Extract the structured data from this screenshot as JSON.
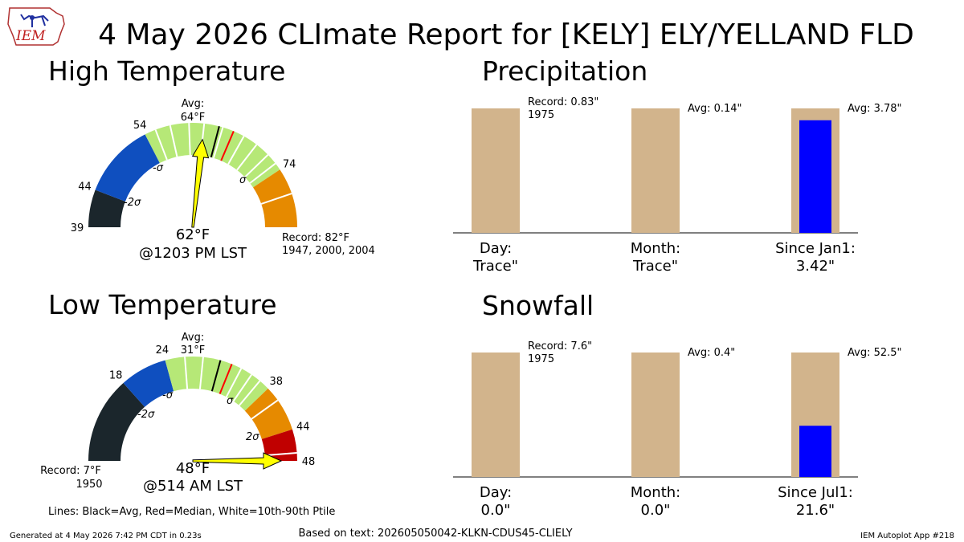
{
  "header": {
    "title": "4 May 2026 CLImate Report for [KELY] ELY/YELLAND FLD",
    "logo_text": "IEM"
  },
  "high_temp": {
    "heading": "High Temperature",
    "avg_label": "Avg:",
    "avg_value": "64°F",
    "observed_value": "62°F",
    "observed_time": "@1203 PM LST",
    "record_line1": "Record: 82°F",
    "record_line2": "1947, 2000, 2004",
    "sigma_labels": [
      "-2σ",
      "-σ",
      "σ"
    ]
  },
  "low_temp": {
    "heading": "Low Temperature",
    "avg_label": "Avg:",
    "avg_value": "31°F",
    "observed_value": "48°F",
    "observed_time": "@514 AM LST",
    "record_line1": "Record: 7°F",
    "record_line2": "1950",
    "sigma_labels": [
      "-2σ",
      "-σ",
      "σ",
      "2σ"
    ]
  },
  "precipitation": {
    "heading": "Precipitation",
    "record_line1": "Record: 0.83\"",
    "record_line2": "1975",
    "avg_labels": [
      "Avg: 0.14\"",
      "Avg: 3.78\""
    ],
    "categories": [
      {
        "name": "Day:",
        "value": "Trace\""
      },
      {
        "name": "Month:",
        "value": "Trace\""
      },
      {
        "name": "Since Jan1:",
        "value": "3.42\""
      }
    ]
  },
  "snowfall": {
    "heading": "Snowfall",
    "record_line1": "Record: 7.6\"",
    "record_line2": "1975",
    "avg_labels": [
      "Avg: 0.4\"",
      "Avg: 52.5\""
    ],
    "categories": [
      {
        "name": "Day:",
        "value": "0.0\""
      },
      {
        "name": "Month:",
        "value": "0.0\""
      },
      {
        "name": "Since Jul1:",
        "value": "21.6\""
      }
    ]
  },
  "footer": {
    "lines_note": "Lines: Black=Avg, Red=Median, White=10th-90th Ptile",
    "generated": "Generated at 4 May 2026 7:42 PM CDT in 0.23s",
    "based_on": "Based on text: 202605050042-KLKN-CDUS45-CLIELY",
    "app": "IEM Autoplot App #218"
  },
  "colors": {
    "gauge_dark": "#1b262c",
    "gauge_blue": "#0f4fbf",
    "gauge_green": "#b6e877",
    "gauge_orange": "#e68a00",
    "gauge_red": "#c00000",
    "needle": "#ffff00",
    "bar_tan": "#d2b48c",
    "bar_blue": "#0000ff",
    "median_line": "#ff0000"
  },
  "chart_data": [
    {
      "type": "gauge",
      "title": "High Temperature",
      "units": "°F",
      "range": [
        39,
        82
      ],
      "tick_values": [
        39,
        44,
        54,
        74
      ],
      "average": 64,
      "median": 66,
      "observed": 62,
      "record": 82,
      "bands": [
        {
          "from": 39,
          "to": 44,
          "color": "gauge_dark"
        },
        {
          "from": 44,
          "to": 54,
          "color": "gauge_blue"
        },
        {
          "from": 54,
          "to": 74,
          "color": "gauge_green"
        },
        {
          "from": 74,
          "to": 82,
          "color": "gauge_orange"
        }
      ],
      "percentile_lines": [
        55.5,
        57.5,
        60,
        62,
        64.5,
        67.5,
        69.5,
        71.5,
        73,
        77.5
      ],
      "sigma_marks": [
        49,
        59,
        69
      ]
    },
    {
      "type": "gauge",
      "title": "Low Temperature",
      "units": "°F",
      "range": [
        7,
        48
      ],
      "tick_values": [
        18,
        24,
        38,
        44,
        48
      ],
      "average": 31,
      "median": 32.5,
      "observed": 48,
      "record": 7,
      "bands": [
        {
          "from": 7,
          "to": 18,
          "color": "gauge_dark"
        },
        {
          "from": 18,
          "to": 24,
          "color": "gauge_blue"
        },
        {
          "from": 24,
          "to": 38,
          "color": "gauge_green"
        },
        {
          "from": 38,
          "to": 44,
          "color": "gauge_orange"
        },
        {
          "from": 44,
          "to": 48,
          "color": "gauge_red"
        }
      ],
      "percentile_lines": [
        26.5,
        28.8,
        33.8,
        35.3,
        36.6,
        39.9,
        47
      ],
      "sigma_marks": [
        20,
        26,
        35,
        41
      ]
    },
    {
      "type": "bar",
      "title": "Precipitation",
      "units": "in",
      "categories": [
        "Day",
        "Month",
        "Since Jan1"
      ],
      "series": [
        {
          "name": "Avg",
          "values": [
            null,
            0.14,
            3.78
          ]
        },
        {
          "name": "Observed",
          "values": [
            0.0,
            0.0,
            3.42
          ]
        }
      ],
      "record": {
        "value": 0.83,
        "year": "1975"
      },
      "observed_display": [
        "Trace",
        "Trace",
        "3.42"
      ]
    },
    {
      "type": "bar",
      "title": "Snowfall",
      "units": "in",
      "categories": [
        "Day",
        "Month",
        "Since Jul1"
      ],
      "series": [
        {
          "name": "Avg",
          "values": [
            null,
            0.4,
            52.5
          ]
        },
        {
          "name": "Observed",
          "values": [
            0.0,
            0.0,
            21.6
          ]
        }
      ],
      "record": {
        "value": 7.6,
        "year": "1975"
      },
      "observed_display": [
        "0.0",
        "0.0",
        "21.6"
      ]
    }
  ]
}
